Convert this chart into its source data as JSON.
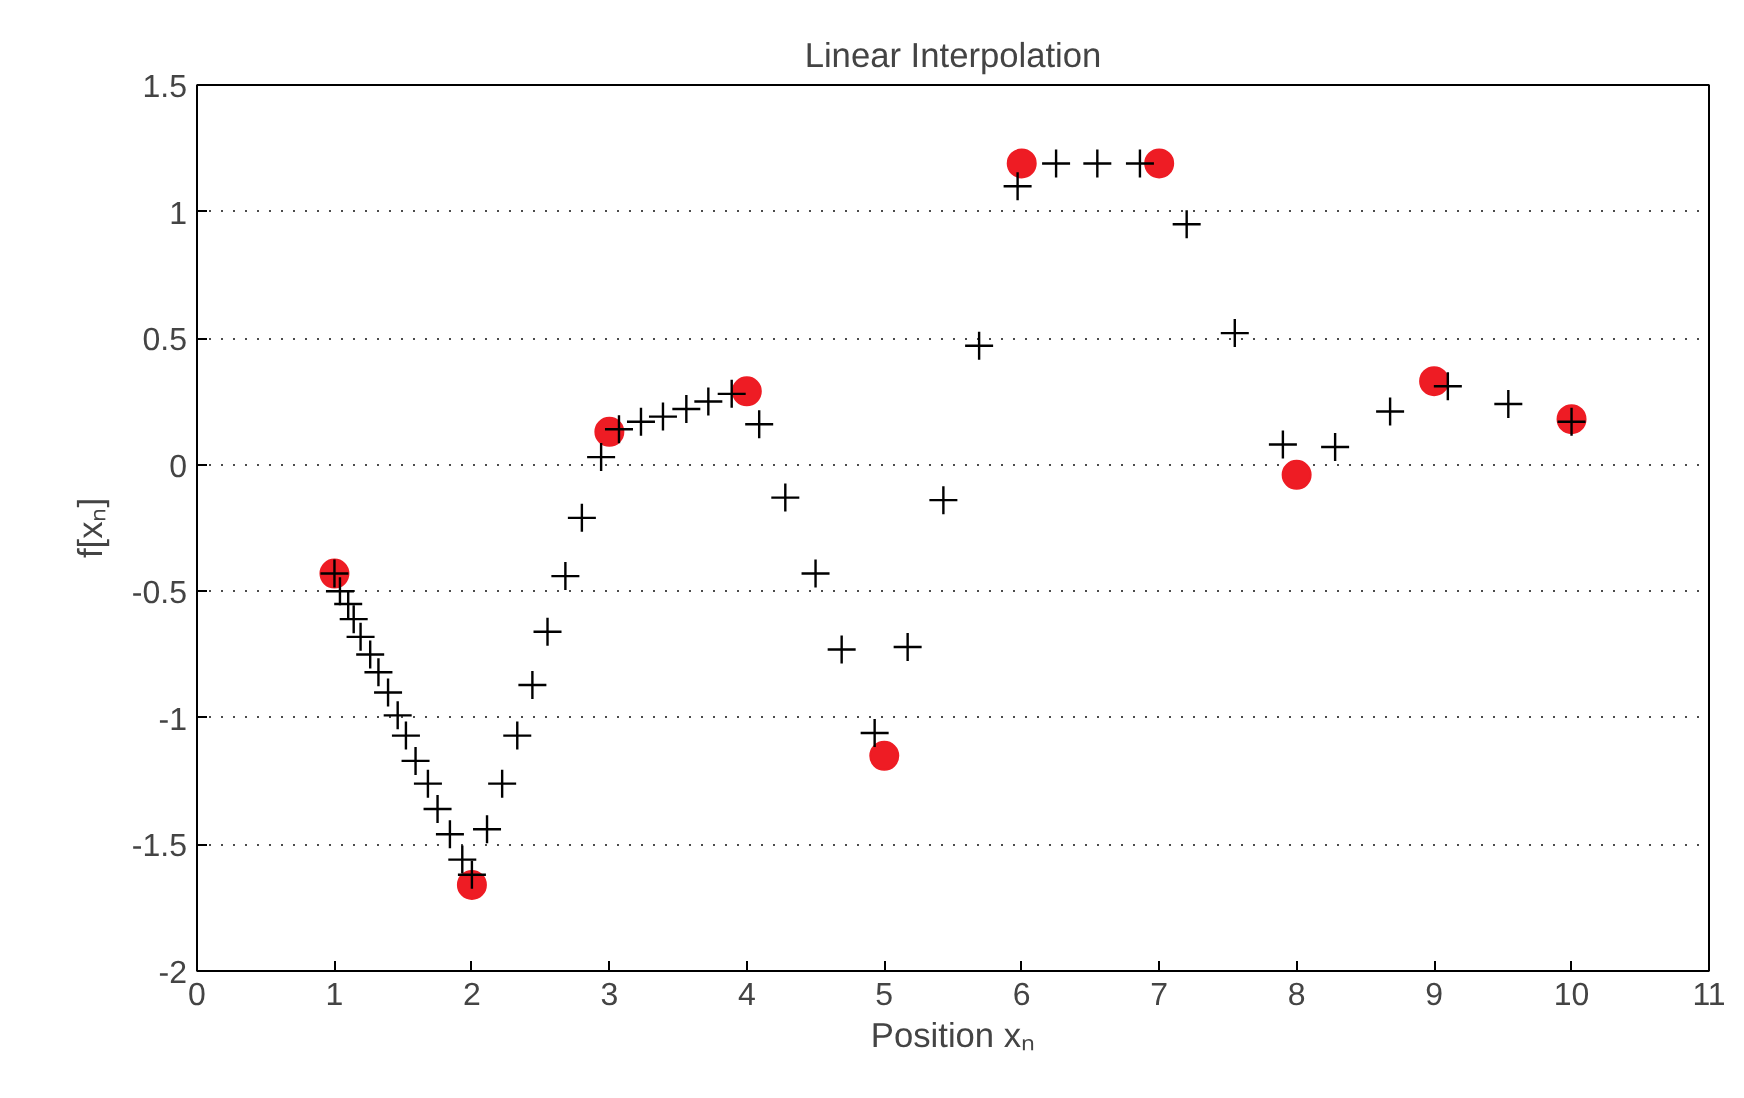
{
  "chart_data": {
    "type": "scatter",
    "title": "Linear Interpolation",
    "xlabel": "Position xₙ",
    "ylabel": "f[xₙ]",
    "xlim": [
      0,
      11
    ],
    "ylim": [
      -2,
      1.5
    ],
    "xticks": [
      0,
      1,
      2,
      3,
      4,
      5,
      6,
      7,
      8,
      9,
      10,
      11
    ],
    "yticks": [
      -2,
      -1.5,
      -1,
      -0.5,
      0,
      0.5,
      1,
      1.5
    ],
    "grid": "y",
    "series": [
      {
        "color": "#ee1c24",
        "marker": "circle",
        "x": [
          1,
          2,
          3,
          4,
          5,
          6,
          7,
          8,
          9,
          10
        ],
        "values": [
          -0.43,
          -1.66,
          0.13,
          0.29,
          -1.15,
          1.19,
          1.19,
          -0.04,
          0.33,
          0.18
        ]
      },
      {
        "color": "#000000",
        "marker": "cross",
        "x": [
          1.0,
          1.04,
          1.1,
          1.14,
          1.19,
          1.26,
          1.32,
          1.39,
          1.46,
          1.52,
          1.59,
          1.68,
          1.75,
          1.84,
          1.93,
          2.0,
          2.11,
          2.22,
          2.33,
          2.44,
          2.55,
          2.68,
          2.8,
          2.94,
          3.07,
          3.23,
          3.39,
          3.56,
          3.72,
          3.89,
          4.09,
          4.28,
          4.5,
          4.69,
          4.93,
          5.17,
          5.43,
          5.69,
          5.97,
          6.25,
          6.55,
          6.86,
          7.2,
          7.55,
          7.9,
          8.28,
          8.68,
          9.1,
          9.54,
          10.0
        ],
        "values": [
          -0.43,
          -0.5,
          -0.55,
          -0.61,
          -0.68,
          -0.75,
          -0.82,
          -0.9,
          -0.99,
          -1.07,
          -1.17,
          -1.26,
          -1.36,
          -1.46,
          -1.56,
          -1.62,
          -1.44,
          -1.26,
          -1.07,
          -0.87,
          -0.66,
          -0.44,
          -0.21,
          0.03,
          0.14,
          0.17,
          0.19,
          0.22,
          0.25,
          0.28,
          0.16,
          -0.13,
          -0.43,
          -0.73,
          -1.06,
          -0.72,
          -0.14,
          0.47,
          1.1,
          1.19,
          1.19,
          1.19,
          0.95,
          0.52,
          0.08,
          0.07,
          0.21,
          0.31,
          0.24,
          0.17
        ]
      }
    ]
  }
}
